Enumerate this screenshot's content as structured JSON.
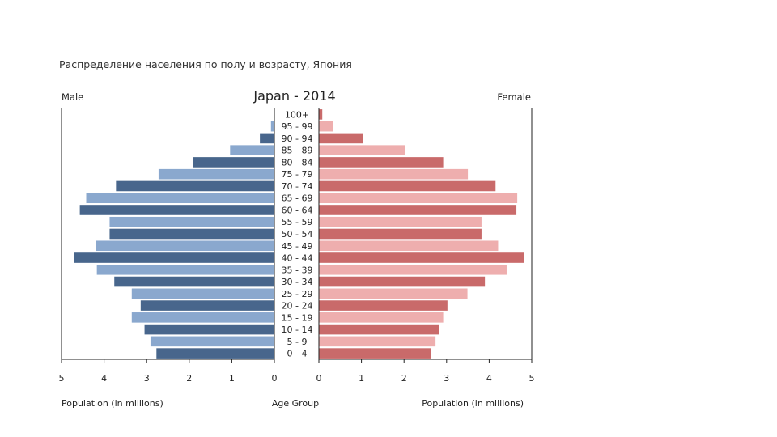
{
  "page": {
    "subtitle": "Распределение населения по полу и возрасту, Япония"
  },
  "colors": {
    "male_dark": "#48668c",
    "male_light": "#8aa8ce",
    "female_dark": "#c96a6a",
    "female_light": "#eeaeae",
    "axis": "#222222"
  },
  "chart_data": {
    "type": "bar",
    "orientation": "horizontal-pyramid",
    "title": "Japan - 2014",
    "left_label": "Male",
    "right_label": "Female",
    "xlabel_left": "Population (in millions)",
    "xlabel_center": "Age Group",
    "xlabel_right": "Population (in millions)",
    "xlim": [
      0,
      5
    ],
    "ticks": [
      0,
      1,
      2,
      3,
      4,
      5
    ],
    "categories": [
      "100+",
      "95 - 99",
      "90 - 94",
      "85 - 89",
      "80 - 84",
      "75 - 79",
      "70 - 74",
      "65 - 69",
      "60 - 64",
      "55 - 59",
      "50 - 54",
      "45 - 49",
      "40 - 44",
      "35 - 39",
      "30 - 34",
      "25 - 29",
      "20 - 24",
      "15 - 19",
      "10 - 14",
      "5 - 9",
      "0 - 4"
    ],
    "series": [
      {
        "name": "Male",
        "values": [
          0.01,
          0.08,
          0.34,
          1.04,
          1.92,
          2.72,
          3.72,
          4.42,
          4.57,
          3.87,
          3.87,
          4.19,
          4.7,
          4.17,
          3.76,
          3.35,
          3.14,
          3.35,
          3.05,
          2.91,
          2.77
        ]
      },
      {
        "name": "Female",
        "values": [
          0.08,
          0.34,
          1.04,
          2.03,
          2.92,
          3.5,
          4.15,
          4.66,
          4.64,
          3.82,
          3.82,
          4.21,
          4.81,
          4.41,
          3.9,
          3.49,
          3.02,
          2.92,
          2.83,
          2.74,
          2.64
        ]
      }
    ]
  }
}
